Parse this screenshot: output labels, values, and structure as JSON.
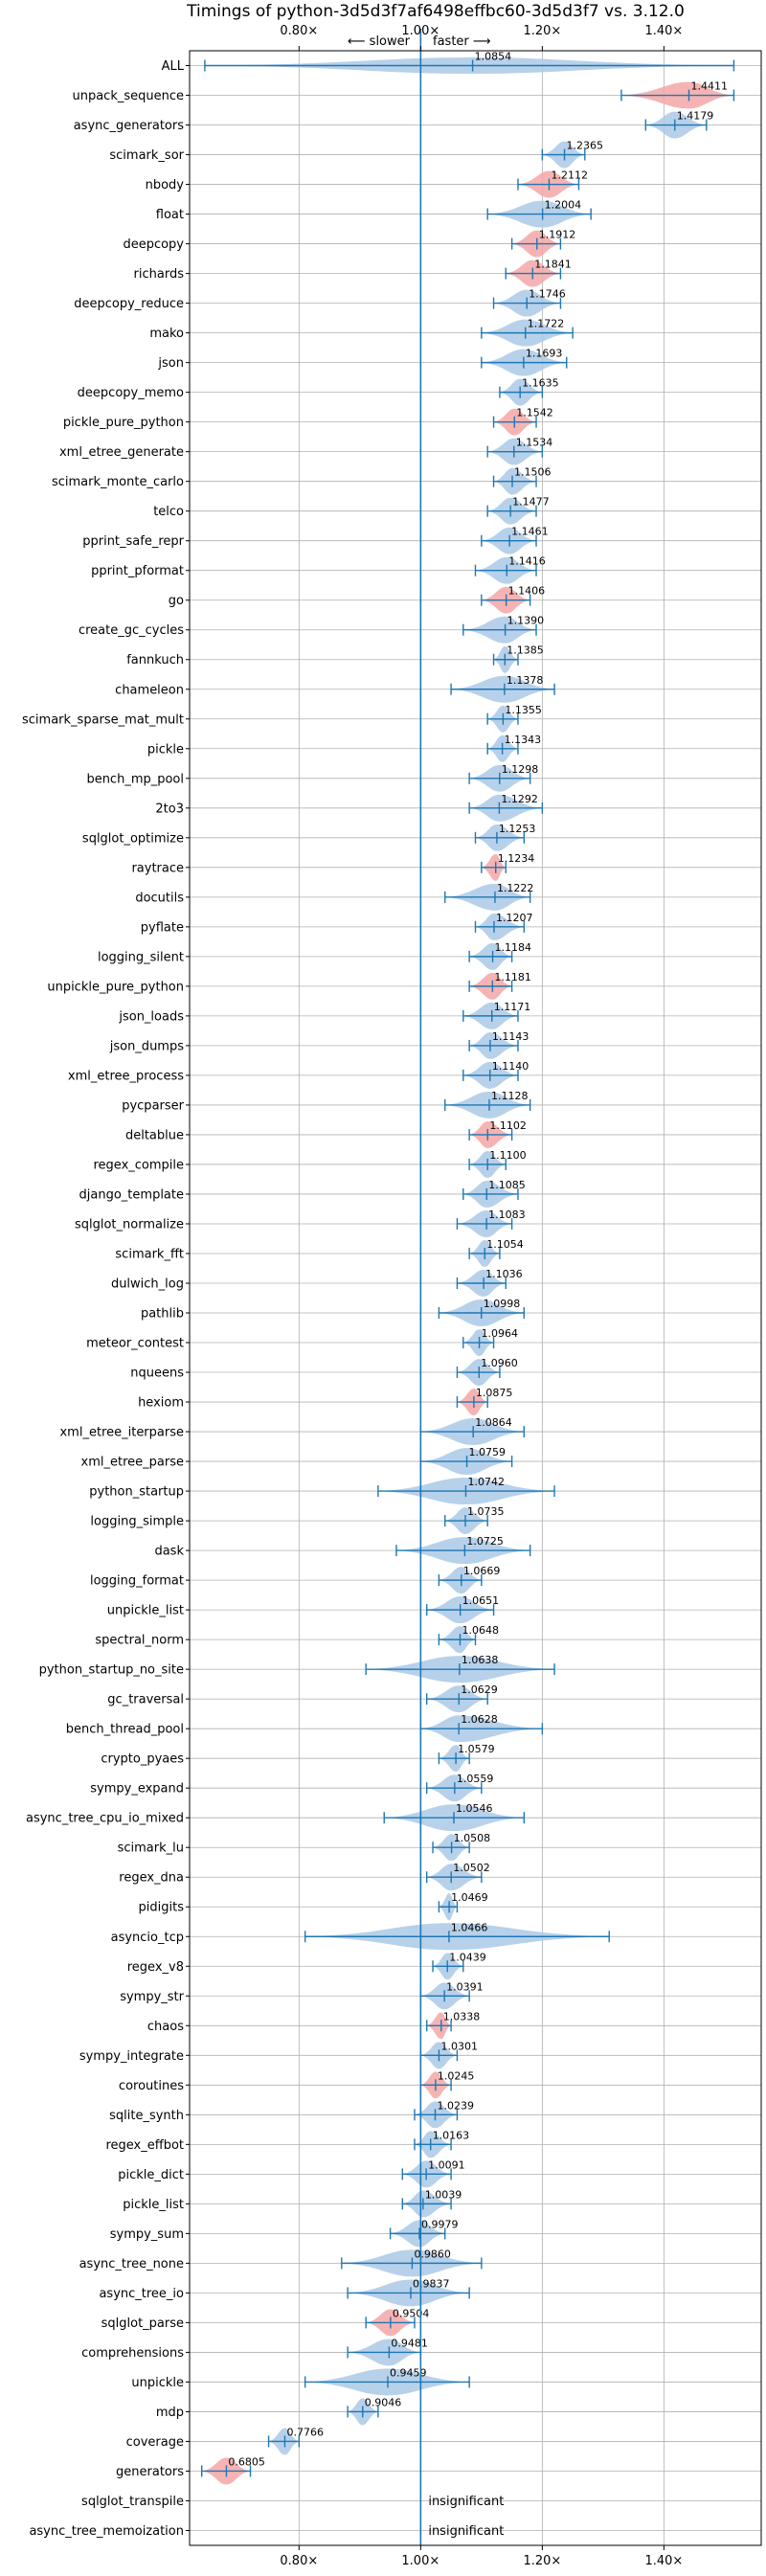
{
  "chart_data": {
    "type": "violin",
    "title": "Timings of python-3d5d3f7af6498effbc60-3d5d3f7 vs. 3.12.0",
    "direction": {
      "slower": "⟵ slower",
      "faster": "faster ⟶"
    },
    "xlim": [
      0.62,
      1.56
    ],
    "ticks": [
      0.8,
      1.0,
      1.2,
      1.4
    ],
    "tick_labels": [
      "0.80×",
      "1.00×",
      "1.20×",
      "1.40×"
    ],
    "reference": 1.0,
    "grid": true,
    "colors": {
      "normal": "#aac9e6",
      "slower": "#f4a6a6",
      "line": "#1f77b4",
      "axis": "#000000",
      "grid": "#b0b0b0"
    },
    "insignificant_label": "insignificant",
    "benchmarks": [
      {
        "name": "ALL",
        "value": 1.0854,
        "label": "1.0854",
        "min": 0.645,
        "max": 1.515,
        "width": 0.55,
        "highlight": false
      },
      {
        "name": "unpack_sequence",
        "value": 1.4411,
        "label": "1.4411",
        "min": 1.33,
        "max": 1.515,
        "width": 0.9,
        "highlight": true
      },
      {
        "name": "async_generators",
        "value": 1.4179,
        "label": "1.4179",
        "min": 1.37,
        "max": 1.47,
        "width": 0.9,
        "highlight": false
      },
      {
        "name": "scimark_sor",
        "value": 1.2365,
        "label": "1.2365",
        "min": 1.2,
        "max": 1.27,
        "width": 0.9,
        "highlight": false
      },
      {
        "name": "nbody",
        "value": 1.2112,
        "label": "1.2112",
        "min": 1.16,
        "max": 1.26,
        "width": 0.9,
        "highlight": true
      },
      {
        "name": "float",
        "value": 1.2004,
        "label": "1.2004",
        "min": 1.11,
        "max": 1.28,
        "width": 0.9,
        "highlight": false
      },
      {
        "name": "deepcopy",
        "value": 1.1912,
        "label": "1.1912",
        "min": 1.15,
        "max": 1.23,
        "width": 0.9,
        "highlight": true
      },
      {
        "name": "richards",
        "value": 1.1841,
        "label": "1.1841",
        "min": 1.14,
        "max": 1.23,
        "width": 0.9,
        "highlight": true
      },
      {
        "name": "deepcopy_reduce",
        "value": 1.1746,
        "label": "1.1746",
        "min": 1.12,
        "max": 1.23,
        "width": 0.9,
        "highlight": false
      },
      {
        "name": "mako",
        "value": 1.1722,
        "label": "1.1722",
        "min": 1.1,
        "max": 1.25,
        "width": 0.9,
        "highlight": false
      },
      {
        "name": "json",
        "value": 1.1693,
        "label": "1.1693",
        "min": 1.1,
        "max": 1.24,
        "width": 0.9,
        "highlight": false
      },
      {
        "name": "deepcopy_memo",
        "value": 1.1635,
        "label": "1.1635",
        "min": 1.13,
        "max": 1.2,
        "width": 0.9,
        "highlight": false
      },
      {
        "name": "pickle_pure_python",
        "value": 1.1542,
        "label": "1.1542",
        "min": 1.12,
        "max": 1.19,
        "width": 0.9,
        "highlight": true
      },
      {
        "name": "xml_etree_generate",
        "value": 1.1534,
        "label": "1.1534",
        "min": 1.11,
        "max": 1.2,
        "width": 0.9,
        "highlight": false
      },
      {
        "name": "scimark_monte_carlo",
        "value": 1.1506,
        "label": "1.1506",
        "min": 1.12,
        "max": 1.19,
        "width": 0.9,
        "highlight": false
      },
      {
        "name": "telco",
        "value": 1.1477,
        "label": "1.1477",
        "min": 1.11,
        "max": 1.19,
        "width": 0.9,
        "highlight": false
      },
      {
        "name": "pprint_safe_repr",
        "value": 1.1461,
        "label": "1.1461",
        "min": 1.1,
        "max": 1.19,
        "width": 0.9,
        "highlight": false
      },
      {
        "name": "pprint_pformat",
        "value": 1.1416,
        "label": "1.1416",
        "min": 1.09,
        "max": 1.19,
        "width": 0.9,
        "highlight": false
      },
      {
        "name": "go",
        "value": 1.1406,
        "label": "1.1406",
        "min": 1.1,
        "max": 1.18,
        "width": 0.9,
        "highlight": true
      },
      {
        "name": "create_gc_cycles",
        "value": 1.139,
        "label": "1.1390",
        "min": 1.07,
        "max": 1.19,
        "width": 0.9,
        "highlight": false
      },
      {
        "name": "fannkuch",
        "value": 1.1385,
        "label": "1.1385",
        "min": 1.12,
        "max": 1.16,
        "width": 0.9,
        "highlight": false
      },
      {
        "name": "chameleon",
        "value": 1.1378,
        "label": "1.1378",
        "min": 1.05,
        "max": 1.22,
        "width": 0.9,
        "highlight": false
      },
      {
        "name": "scimark_sparse_mat_mult",
        "value": 1.1355,
        "label": "1.1355",
        "min": 1.11,
        "max": 1.16,
        "width": 0.9,
        "highlight": false
      },
      {
        "name": "pickle",
        "value": 1.1343,
        "label": "1.1343",
        "min": 1.11,
        "max": 1.16,
        "width": 0.9,
        "highlight": false
      },
      {
        "name": "bench_mp_pool",
        "value": 1.1298,
        "label": "1.1298",
        "min": 1.08,
        "max": 1.18,
        "width": 0.9,
        "highlight": false
      },
      {
        "name": "2to3",
        "value": 1.1292,
        "label": "1.1292",
        "min": 1.08,
        "max": 1.2,
        "width": 0.9,
        "highlight": false
      },
      {
        "name": "sqlglot_optimize",
        "value": 1.1253,
        "label": "1.1253",
        "min": 1.09,
        "max": 1.17,
        "width": 0.9,
        "highlight": false
      },
      {
        "name": "raytrace",
        "value": 1.1234,
        "label": "1.1234",
        "min": 1.1,
        "max": 1.14,
        "width": 0.9,
        "highlight": true
      },
      {
        "name": "docutils",
        "value": 1.1222,
        "label": "1.1222",
        "min": 1.04,
        "max": 1.18,
        "width": 0.9,
        "highlight": false
      },
      {
        "name": "pyflate",
        "value": 1.1207,
        "label": "1.1207",
        "min": 1.09,
        "max": 1.17,
        "width": 0.9,
        "highlight": false
      },
      {
        "name": "logging_silent",
        "value": 1.1184,
        "label": "1.1184",
        "min": 1.08,
        "max": 1.15,
        "width": 0.9,
        "highlight": false
      },
      {
        "name": "unpickle_pure_python",
        "value": 1.1181,
        "label": "1.1181",
        "min": 1.08,
        "max": 1.15,
        "width": 0.9,
        "highlight": true
      },
      {
        "name": "json_loads",
        "value": 1.1171,
        "label": "1.1171",
        "min": 1.07,
        "max": 1.16,
        "width": 0.9,
        "highlight": false
      },
      {
        "name": "json_dumps",
        "value": 1.1143,
        "label": "1.1143",
        "min": 1.08,
        "max": 1.16,
        "width": 0.9,
        "highlight": false
      },
      {
        "name": "xml_etree_process",
        "value": 1.114,
        "label": "1.1140",
        "min": 1.07,
        "max": 1.16,
        "width": 0.9,
        "highlight": false
      },
      {
        "name": "pycparser",
        "value": 1.1128,
        "label": "1.1128",
        "min": 1.04,
        "max": 1.18,
        "width": 0.9,
        "highlight": false
      },
      {
        "name": "deltablue",
        "value": 1.1102,
        "label": "1.1102",
        "min": 1.08,
        "max": 1.15,
        "width": 0.9,
        "highlight": true
      },
      {
        "name": "regex_compile",
        "value": 1.11,
        "label": "1.1100",
        "min": 1.08,
        "max": 1.14,
        "width": 0.9,
        "highlight": false
      },
      {
        "name": "django_template",
        "value": 1.1085,
        "label": "1.1085",
        "min": 1.07,
        "max": 1.16,
        "width": 0.9,
        "highlight": false
      },
      {
        "name": "sqlglot_normalize",
        "value": 1.1083,
        "label": "1.1083",
        "min": 1.06,
        "max": 1.15,
        "width": 0.9,
        "highlight": false
      },
      {
        "name": "scimark_fft",
        "value": 1.1054,
        "label": "1.1054",
        "min": 1.08,
        "max": 1.13,
        "width": 0.9,
        "highlight": false
      },
      {
        "name": "dulwich_log",
        "value": 1.1036,
        "label": "1.1036",
        "min": 1.06,
        "max": 1.14,
        "width": 0.9,
        "highlight": false
      },
      {
        "name": "pathlib",
        "value": 1.0998,
        "label": "1.0998",
        "min": 1.03,
        "max": 1.17,
        "width": 0.9,
        "highlight": false
      },
      {
        "name": "meteor_contest",
        "value": 1.0964,
        "label": "1.0964",
        "min": 1.07,
        "max": 1.12,
        "width": 0.9,
        "highlight": false
      },
      {
        "name": "nqueens",
        "value": 1.096,
        "label": "1.0960",
        "min": 1.06,
        "max": 1.13,
        "width": 0.9,
        "highlight": false
      },
      {
        "name": "hexiom",
        "value": 1.0875,
        "label": "1.0875",
        "min": 1.06,
        "max": 1.11,
        "width": 0.9,
        "highlight": true
      },
      {
        "name": "xml_etree_iterparse",
        "value": 1.0864,
        "label": "1.0864",
        "min": 1.0,
        "max": 1.17,
        "width": 0.9,
        "highlight": false
      },
      {
        "name": "xml_etree_parse",
        "value": 1.0759,
        "label": "1.0759",
        "min": 1.0,
        "max": 1.15,
        "width": 0.9,
        "highlight": false
      },
      {
        "name": "python_startup",
        "value": 1.0742,
        "label": "1.0742",
        "min": 0.93,
        "max": 1.22,
        "width": 0.9,
        "highlight": false
      },
      {
        "name": "logging_simple",
        "value": 1.0735,
        "label": "1.0735",
        "min": 1.04,
        "max": 1.11,
        "width": 0.9,
        "highlight": false
      },
      {
        "name": "dask",
        "value": 1.0725,
        "label": "1.0725",
        "min": 0.96,
        "max": 1.18,
        "width": 0.9,
        "highlight": false
      },
      {
        "name": "logging_format",
        "value": 1.0669,
        "label": "1.0669",
        "min": 1.03,
        "max": 1.1,
        "width": 0.9,
        "highlight": false
      },
      {
        "name": "unpickle_list",
        "value": 1.0651,
        "label": "1.0651",
        "min": 1.01,
        "max": 1.12,
        "width": 0.9,
        "highlight": false
      },
      {
        "name": "spectral_norm",
        "value": 1.0648,
        "label": "1.0648",
        "min": 1.03,
        "max": 1.09,
        "width": 0.9,
        "highlight": false
      },
      {
        "name": "python_startup_no_site",
        "value": 1.0638,
        "label": "1.0638",
        "min": 0.91,
        "max": 1.22,
        "width": 0.9,
        "highlight": false
      },
      {
        "name": "gc_traversal",
        "value": 1.0629,
        "label": "1.0629",
        "min": 1.01,
        "max": 1.11,
        "width": 0.9,
        "highlight": false
      },
      {
        "name": "bench_thread_pool",
        "value": 1.0628,
        "label": "1.0628",
        "min": 1.0,
        "max": 1.2,
        "width": 0.9,
        "highlight": false
      },
      {
        "name": "crypto_pyaes",
        "value": 1.0579,
        "label": "1.0579",
        "min": 1.03,
        "max": 1.08,
        "width": 0.9,
        "highlight": false
      },
      {
        "name": "sympy_expand",
        "value": 1.0559,
        "label": "1.0559",
        "min": 1.01,
        "max": 1.1,
        "width": 0.9,
        "highlight": false
      },
      {
        "name": "async_tree_cpu_io_mixed",
        "value": 1.0546,
        "label": "1.0546",
        "min": 0.94,
        "max": 1.17,
        "width": 0.9,
        "highlight": false
      },
      {
        "name": "scimark_lu",
        "value": 1.0508,
        "label": "1.0508",
        "min": 1.02,
        "max": 1.08,
        "width": 0.9,
        "highlight": false
      },
      {
        "name": "regex_dna",
        "value": 1.0502,
        "label": "1.0502",
        "min": 1.01,
        "max": 1.1,
        "width": 0.9,
        "highlight": false
      },
      {
        "name": "pidigits",
        "value": 1.0469,
        "label": "1.0469",
        "min": 1.03,
        "max": 1.06,
        "width": 0.9,
        "highlight": false
      },
      {
        "name": "asyncio_tcp",
        "value": 1.0466,
        "label": "1.0466",
        "min": 0.81,
        "max": 1.31,
        "width": 0.9,
        "highlight": false
      },
      {
        "name": "regex_v8",
        "value": 1.0439,
        "label": "1.0439",
        "min": 1.02,
        "max": 1.07,
        "width": 0.9,
        "highlight": false
      },
      {
        "name": "sympy_str",
        "value": 1.0391,
        "label": "1.0391",
        "min": 1.0,
        "max": 1.08,
        "width": 0.9,
        "highlight": false
      },
      {
        "name": "chaos",
        "value": 1.0338,
        "label": "1.0338",
        "min": 1.01,
        "max": 1.05,
        "width": 0.9,
        "highlight": true
      },
      {
        "name": "sympy_integrate",
        "value": 1.0301,
        "label": "1.0301",
        "min": 1.0,
        "max": 1.06,
        "width": 0.9,
        "highlight": false
      },
      {
        "name": "coroutines",
        "value": 1.0245,
        "label": "1.0245",
        "min": 1.0,
        "max": 1.05,
        "width": 0.9,
        "highlight": true
      },
      {
        "name": "sqlite_synth",
        "value": 1.0239,
        "label": "1.0239",
        "min": 0.99,
        "max": 1.06,
        "width": 0.9,
        "highlight": false
      },
      {
        "name": "regex_effbot",
        "value": 1.0163,
        "label": "1.0163",
        "min": 0.99,
        "max": 1.05,
        "width": 0.9,
        "highlight": false
      },
      {
        "name": "pickle_dict",
        "value": 1.0091,
        "label": "1.0091",
        "min": 0.97,
        "max": 1.05,
        "width": 0.9,
        "highlight": false
      },
      {
        "name": "pickle_list",
        "value": 1.0039,
        "label": "1.0039",
        "min": 0.97,
        "max": 1.05,
        "width": 0.9,
        "highlight": false
      },
      {
        "name": "sympy_sum",
        "value": 0.9979,
        "label": "0.9979",
        "min": 0.95,
        "max": 1.04,
        "width": 0.9,
        "highlight": false
      },
      {
        "name": "async_tree_none",
        "value": 0.986,
        "label": "0.9860",
        "min": 0.87,
        "max": 1.1,
        "width": 0.9,
        "highlight": false
      },
      {
        "name": "async_tree_io",
        "value": 0.9837,
        "label": "0.9837",
        "min": 0.88,
        "max": 1.08,
        "width": 0.9,
        "highlight": false
      },
      {
        "name": "sqlglot_parse",
        "value": 0.9504,
        "label": "0.9504",
        "min": 0.91,
        "max": 0.99,
        "width": 0.9,
        "highlight": true
      },
      {
        "name": "comprehensions",
        "value": 0.9481,
        "label": "0.9481",
        "min": 0.88,
        "max": 1.0,
        "width": 0.9,
        "highlight": false
      },
      {
        "name": "unpickle",
        "value": 0.9459,
        "label": "0.9459",
        "min": 0.81,
        "max": 1.08,
        "width": 0.9,
        "highlight": false
      },
      {
        "name": "mdp",
        "value": 0.9046,
        "label": "0.9046",
        "min": 0.88,
        "max": 0.93,
        "width": 0.9,
        "highlight": false
      },
      {
        "name": "coverage",
        "value": 0.7766,
        "label": "0.7766",
        "min": 0.75,
        "max": 0.8,
        "width": 0.9,
        "highlight": false
      },
      {
        "name": "generators",
        "value": 0.6805,
        "label": "0.6805",
        "min": 0.64,
        "max": 0.72,
        "width": 0.9,
        "highlight": true
      },
      {
        "name": "sqlglot_transpile",
        "value": null,
        "label": "insignificant",
        "min": null,
        "max": null,
        "width": 0,
        "highlight": false
      },
      {
        "name": "async_tree_memoization",
        "value": null,
        "label": "insignificant",
        "min": null,
        "max": null,
        "width": 0,
        "highlight": false
      }
    ]
  }
}
